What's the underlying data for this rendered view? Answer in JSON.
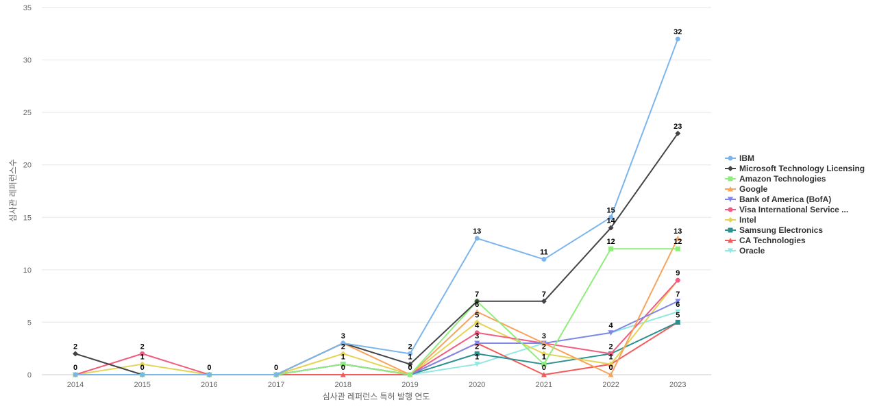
{
  "chart_data": {
    "type": "line",
    "xlabel": "심사관 레퍼런스 특허 발행 연도",
    "ylabel": "심사관 레퍼런스수",
    "x": [
      "2014",
      "2015",
      "2016",
      "2017",
      "2018",
      "2019",
      "2020",
      "2021",
      "2022",
      "2023"
    ],
    "ylim": [
      0,
      35
    ],
    "yticks": [
      0,
      5,
      10,
      15,
      20,
      25,
      30,
      35
    ],
    "grid": true,
    "legend_position": "right",
    "series": [
      {
        "name": "IBM",
        "color": "#7cb5ec",
        "marker": "circle",
        "values": [
          0,
          0,
          0,
          0,
          3,
          2,
          13,
          11,
          15,
          32
        ]
      },
      {
        "name": "Microsoft Technology Licensing",
        "color": "#434348",
        "marker": "diamond",
        "values": [
          2,
          0,
          0,
          0,
          3,
          1,
          7,
          7,
          14,
          23
        ]
      },
      {
        "name": "Amazon Technologies",
        "color": "#90ed7d",
        "marker": "square",
        "values": [
          0,
          0,
          0,
          0,
          1,
          0,
          7,
          1,
          12,
          12
        ]
      },
      {
        "name": "Google",
        "color": "#f7a35c",
        "marker": "triangle",
        "values": [
          0,
          0,
          0,
          0,
          3,
          0,
          6,
          3,
          0,
          13
        ]
      },
      {
        "name": "Bank of America (BofA)",
        "color": "#8085e9",
        "marker": "triangle-down",
        "values": [
          0,
          0,
          0,
          0,
          1,
          0,
          3,
          3,
          4,
          7
        ]
      },
      {
        "name": "Visa International Service ...",
        "color": "#f15c80",
        "marker": "circle",
        "values": [
          0,
          2,
          0,
          0,
          1,
          0,
          4,
          3,
          2,
          9
        ]
      },
      {
        "name": "Intel",
        "color": "#e4d354",
        "marker": "diamond",
        "values": [
          0,
          1,
          0,
          0,
          2,
          0,
          5,
          2,
          1,
          9
        ]
      },
      {
        "name": "Samsung Electronics",
        "color": "#2b908f",
        "marker": "square",
        "values": [
          0,
          0,
          0,
          0,
          1,
          0,
          2,
          1,
          2,
          5
        ]
      },
      {
        "name": "CA Technologies",
        "color": "#f45b5b",
        "marker": "triangle",
        "values": [
          0,
          0,
          0,
          0,
          0,
          0,
          3,
          0,
          1,
          5
        ]
      },
      {
        "name": "Oracle",
        "color": "#91e8e1",
        "marker": "triangle-down",
        "values": [
          0,
          0,
          0,
          0,
          1,
          0,
          1,
          3,
          4,
          6
        ]
      }
    ],
    "data_labels": [
      {
        "series": "Microsoft Technology Licensing",
        "x": "2014",
        "value": 2
      },
      {
        "series": "IBM",
        "x": "2014",
        "value": 0
      },
      {
        "series": "Visa International Service ...",
        "x": "2015",
        "value": 2
      },
      {
        "series": "Intel",
        "x": "2015",
        "value": 1
      },
      {
        "series": "IBM",
        "x": "2015",
        "value": 0
      },
      {
        "series": "IBM",
        "x": "2016",
        "value": 0
      },
      {
        "series": "IBM",
        "x": "2017",
        "value": 0
      },
      {
        "series": "IBM",
        "x": "2018",
        "value": 3
      },
      {
        "series": "Intel",
        "x": "2018",
        "value": 2
      },
      {
        "series": "Amazon Technologies",
        "x": "2018",
        "value": 1
      },
      {
        "series": "CA Technologies",
        "x": "2018",
        "value": 0
      },
      {
        "series": "IBM",
        "x": "2019",
        "value": 2
      },
      {
        "series": "Microsoft Technology Licensing",
        "x": "2019",
        "value": 1
      },
      {
        "series": "Amazon Technologies",
        "x": "2019",
        "value": 0
      },
      {
        "series": "IBM",
        "x": "2020",
        "value": 13
      },
      {
        "series": "Microsoft Technology Licensing",
        "x": "2020",
        "value": 7
      },
      {
        "series": "Google",
        "x": "2020",
        "value": 6
      },
      {
        "series": "Intel",
        "x": "2020",
        "value": 5
      },
      {
        "series": "Visa International Service ...",
        "x": "2020",
        "value": 4
      },
      {
        "series": "Bank of America (BofA)",
        "x": "2020",
        "value": 3
      },
      {
        "series": "Samsung Electronics",
        "x": "2020",
        "value": 2
      },
      {
        "series": "Oracle",
        "x": "2020",
        "value": 1
      },
      {
        "series": "IBM",
        "x": "2021",
        "value": 11
      },
      {
        "series": "Microsoft Technology Licensing",
        "x": "2021",
        "value": 7
      },
      {
        "series": "Google",
        "x": "2021",
        "value": 3
      },
      {
        "series": "Intel",
        "x": "2021",
        "value": 2
      },
      {
        "series": "Amazon Technologies",
        "x": "2021",
        "value": 1
      },
      {
        "series": "CA Technologies",
        "x": "2021",
        "value": 0
      },
      {
        "series": "IBM",
        "x": "2022",
        "value": 15
      },
      {
        "series": "Microsoft Technology Licensing",
        "x": "2022",
        "value": 14
      },
      {
        "series": "Amazon Technologies",
        "x": "2022",
        "value": 12
      },
      {
        "series": "Bank of America (BofA)",
        "x": "2022",
        "value": 4
      },
      {
        "series": "Visa International Service ...",
        "x": "2022",
        "value": 2
      },
      {
        "series": "Intel",
        "x": "2022",
        "value": 1
      },
      {
        "series": "Google",
        "x": "2022",
        "value": 0
      },
      {
        "series": "IBM",
        "x": "2023",
        "value": 32
      },
      {
        "series": "Microsoft Technology Licensing",
        "x": "2023",
        "value": 23
      },
      {
        "series": "Google",
        "x": "2023",
        "value": 13
      },
      {
        "series": "Amazon Technologies",
        "x": "2023",
        "value": 12
      },
      {
        "series": "Visa International Service ...",
        "x": "2023",
        "value": 9
      },
      {
        "series": "Bank of America (BofA)",
        "x": "2023",
        "value": 7
      },
      {
        "series": "Oracle",
        "x": "2023",
        "value": 6
      },
      {
        "series": "Samsung Electronics",
        "x": "2023",
        "value": 5
      }
    ]
  }
}
